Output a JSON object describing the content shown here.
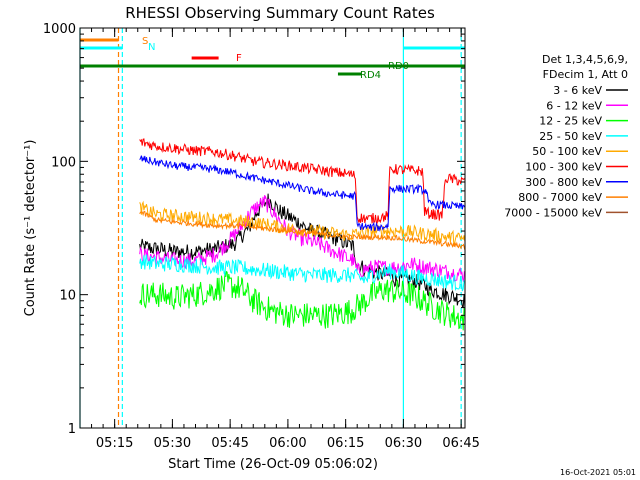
{
  "chart_data": {
    "type": "line",
    "title": "RHESSI Observing Summary Count Rates",
    "xlabel": "Start Time (26-Oct-09 05:06:02)",
    "ylabel": "Count Rate (s⁻¹ detector⁻¹)",
    "x_unit": "minutes after 05:06:02",
    "xlim": [
      0,
      100
    ],
    "ylim": [
      1,
      1000
    ],
    "yscale": "log",
    "grid": false,
    "x_tick_labels": [
      "05:15",
      "05:30",
      "05:45",
      "06:00",
      "06:15",
      "06:30",
      "06:45"
    ],
    "x_tick_values": [
      9,
      24,
      39,
      54,
      69,
      84,
      99
    ],
    "y_tick_labels": [
      "1",
      "10",
      "100",
      "1000"
    ],
    "y_tick_values": [
      1,
      10,
      100,
      1000
    ],
    "legend": {
      "placement": "right",
      "header": [
        "Det 1,3,4,5,6,9,",
        "FDecim 1, Att 0"
      ]
    },
    "series": [
      {
        "name": "3 - 6 keV",
        "color": "#000000",
        "noise": 0.06,
        "points": [
          [
            15.5,
            23
          ],
          [
            20,
            22
          ],
          [
            25,
            21
          ],
          [
            30,
            21
          ],
          [
            35,
            22
          ],
          [
            40,
            24
          ],
          [
            44,
            32
          ],
          [
            46,
            42
          ],
          [
            49,
            52
          ],
          [
            52,
            42
          ],
          [
            56,
            36
          ],
          [
            60,
            30
          ],
          [
            64,
            28
          ],
          [
            67,
            26
          ],
          [
            71,
            23
          ],
          [
            72,
            17
          ],
          [
            75,
            15
          ],
          [
            80,
            14
          ],
          [
            82,
            13
          ],
          [
            86,
            13
          ],
          [
            89,
            12
          ],
          [
            91,
            11
          ],
          [
            95,
            10
          ],
          [
            98,
            9.5
          ],
          [
            100,
            9
          ]
        ]
      },
      {
        "name": "6 - 12 keV",
        "color": "#ff00ff",
        "noise": 0.06,
        "points": [
          [
            15.5,
            20
          ],
          [
            20,
            19
          ],
          [
            25,
            18
          ],
          [
            30,
            18
          ],
          [
            35,
            20
          ],
          [
            38,
            24
          ],
          [
            41,
            30
          ],
          [
            44,
            40
          ],
          [
            46,
            46
          ],
          [
            48,
            50
          ],
          [
            50,
            42
          ],
          [
            54,
            30
          ],
          [
            58,
            26
          ],
          [
            62,
            24
          ],
          [
            66,
            21
          ],
          [
            71,
            18
          ],
          [
            72,
            15
          ],
          [
            76,
            16
          ],
          [
            80,
            16
          ],
          [
            82,
            16
          ],
          [
            86,
            17
          ],
          [
            90,
            16
          ],
          [
            95,
            15
          ],
          [
            100,
            14
          ]
        ]
      },
      {
        "name": "12 - 25 keV",
        "color": "#00ff00",
        "noise": 0.1,
        "points": [
          [
            15.5,
            10
          ],
          [
            20,
            10
          ],
          [
            25,
            9.5
          ],
          [
            30,
            10
          ],
          [
            35,
            11
          ],
          [
            38,
            12
          ],
          [
            42,
            11
          ],
          [
            45,
            9
          ],
          [
            50,
            7.5
          ],
          [
            55,
            7
          ],
          [
            60,
            7
          ],
          [
            65,
            7
          ],
          [
            70,
            7.5
          ],
          [
            73,
            8.5
          ],
          [
            76,
            10
          ],
          [
            79,
            11
          ],
          [
            82,
            10.5
          ],
          [
            86,
            10
          ],
          [
            89,
            9
          ],
          [
            92,
            8
          ],
          [
            96,
            7
          ],
          [
            100,
            6.5
          ]
        ]
      },
      {
        "name": "25 - 50 keV",
        "color": "#00ffff",
        "noise": 0.06,
        "points": [
          [
            15.5,
            18
          ],
          [
            20,
            17
          ],
          [
            25,
            17
          ],
          [
            30,
            16.5
          ],
          [
            35,
            16
          ],
          [
            40,
            16
          ],
          [
            45,
            15.5
          ],
          [
            50,
            15
          ],
          [
            55,
            14.5
          ],
          [
            60,
            14
          ],
          [
            65,
            14
          ],
          [
            70,
            14
          ],
          [
            74,
            13
          ],
          [
            76,
            14
          ],
          [
            80,
            15
          ],
          [
            84,
            14.5
          ],
          [
            88,
            13.5
          ],
          [
            92,
            13
          ],
          [
            96,
            12.5
          ],
          [
            100,
            12
          ]
        ]
      },
      {
        "name": "50 - 100 keV",
        "color": "#ffaa00",
        "noise": 0.05,
        "points": [
          [
            15.5,
            45
          ],
          [
            20,
            40
          ],
          [
            25,
            39
          ],
          [
            30,
            38
          ],
          [
            35,
            37
          ],
          [
            40,
            36
          ],
          [
            45,
            35
          ],
          [
            50,
            33
          ],
          [
            55,
            31
          ],
          [
            60,
            30
          ],
          [
            65,
            29
          ],
          [
            70,
            28
          ],
          [
            76,
            30
          ],
          [
            80,
            30
          ],
          [
            84,
            30
          ],
          [
            88,
            29
          ],
          [
            92,
            28
          ],
          [
            96,
            27
          ],
          [
            100,
            26
          ]
        ]
      },
      {
        "name": "100 - 300 keV",
        "color": "#ff0000",
        "noise": 0.04,
        "points": [
          [
            15.5,
            140
          ],
          [
            20,
            130
          ],
          [
            25,
            125
          ],
          [
            30,
            120
          ],
          [
            35,
            118
          ],
          [
            40,
            110
          ],
          [
            45,
            100
          ],
          [
            50,
            96
          ],
          [
            55,
            92
          ],
          [
            60,
            88
          ],
          [
            65,
            84
          ],
          [
            70,
            80
          ],
          [
            71.5,
            78
          ],
          [
            72,
            38
          ],
          [
            75,
            37
          ],
          [
            78,
            38
          ],
          [
            80,
            39
          ],
          [
            80.5,
            88
          ],
          [
            84,
            86
          ],
          [
            88,
            85
          ],
          [
            89,
            84
          ],
          [
            89.5,
            42
          ],
          [
            90,
            41
          ],
          [
            92,
            40
          ],
          [
            94,
            39
          ],
          [
            95,
            75
          ],
          [
            98,
            72
          ],
          [
            100,
            70
          ]
        ]
      },
      {
        "name": "300 - 800 keV",
        "color": "#0000ff",
        "noise": 0.03,
        "points": [
          [
            15.5,
            105
          ],
          [
            20,
            98
          ],
          [
            25,
            92
          ],
          [
            30,
            90
          ],
          [
            35,
            87
          ],
          [
            40,
            82
          ],
          [
            45,
            75
          ],
          [
            50,
            70
          ],
          [
            55,
            65
          ],
          [
            60,
            60
          ],
          [
            65,
            57
          ],
          [
            70,
            55
          ],
          [
            71.5,
            55
          ],
          [
            72,
            33
          ],
          [
            75,
            32
          ],
          [
            78,
            32
          ],
          [
            80,
            33
          ],
          [
            80.5,
            63
          ],
          [
            84,
            62
          ],
          [
            88,
            62
          ],
          [
            90,
            60
          ],
          [
            90.5,
            48
          ],
          [
            94,
            47
          ],
          [
            98,
            46
          ],
          [
            100,
            45
          ]
        ]
      },
      {
        "name": "800 - 7000 keV",
        "color": "#ff7f00",
        "noise": 0.02,
        "points": [
          [
            15.5,
            42
          ],
          [
            20,
            36
          ],
          [
            25,
            35
          ],
          [
            30,
            34
          ],
          [
            35,
            33
          ],
          [
            40,
            33
          ],
          [
            45,
            32
          ],
          [
            50,
            31
          ],
          [
            55,
            30
          ],
          [
            60,
            29
          ],
          [
            65,
            28
          ],
          [
            70,
            27
          ],
          [
            75,
            27
          ],
          [
            80,
            27
          ],
          [
            85,
            26
          ],
          [
            90,
            25
          ],
          [
            95,
            24
          ],
          [
            100,
            23
          ]
        ]
      },
      {
        "name": "7000 - 15000 keV",
        "color": "#a0522d",
        "noise": 0.02,
        "points": []
      }
    ],
    "intervals": [
      {
        "label": "S",
        "color": "#ff7f00",
        "start": 0,
        "end": 10
      },
      {
        "label": "N",
        "color": "#00ffff",
        "start": 0,
        "end": 11
      },
      {
        "label": "N",
        "color": "#00ffff",
        "start": 84,
        "end": 100
      },
      {
        "label": "F",
        "color": "#ff0000",
        "start": 29,
        "end": 36
      },
      {
        "label": "",
        "color": "#008000",
        "start": 0,
        "end": 100
      },
      {
        "label": "RD0",
        "color": "#008000",
        "start": 73,
        "end": 82
      },
      {
        "label": "RD4",
        "color": "#008000",
        "start": 67,
        "end": 73
      }
    ],
    "vertical_lines": [
      {
        "x": 0,
        "color": "#00ffff",
        "style": "solid"
      },
      {
        "x": 10,
        "color": "#ff7f00",
        "style": "dashed"
      },
      {
        "x": 11,
        "color": "#00ffff",
        "style": "dashed"
      },
      {
        "x": 84,
        "color": "#00ffff",
        "style": "solid"
      },
      {
        "x": 99,
        "color": "#00ffff",
        "style": "dashed"
      }
    ]
  },
  "footer_timestamp": "16-Oct-2021 05:01"
}
